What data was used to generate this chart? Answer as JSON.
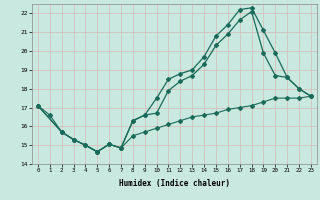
{
  "title": "",
  "xlabel": "Humidex (Indice chaleur)",
  "ylabel": "",
  "bg_color": "#c8e8e0",
  "line_color": "#1a6b5a",
  "grid_color": "#b8d8d0",
  "xlim": [
    -0.5,
    23.5
  ],
  "ylim": [
    14,
    22.5
  ],
  "yticks": [
    14,
    15,
    16,
    17,
    18,
    19,
    20,
    21,
    22
  ],
  "xticks": [
    0,
    1,
    2,
    3,
    4,
    5,
    6,
    7,
    8,
    9,
    10,
    11,
    12,
    13,
    14,
    15,
    16,
    17,
    18,
    19,
    20,
    21,
    22,
    23
  ],
  "line1_x": [
    0,
    1,
    2,
    3,
    4,
    5,
    6,
    7,
    8,
    9,
    10,
    11,
    12,
    13,
    14,
    15,
    16,
    17,
    18,
    19,
    20,
    21,
    22,
    23
  ],
  "line1_y": [
    17.1,
    16.6,
    15.7,
    15.3,
    15.0,
    14.65,
    15.05,
    14.85,
    15.5,
    15.7,
    15.9,
    16.1,
    16.3,
    16.5,
    16.6,
    16.7,
    16.9,
    17.0,
    17.1,
    17.3,
    17.5,
    17.5,
    17.5,
    17.6
  ],
  "line2_x": [
    0,
    2,
    3,
    4,
    5,
    6,
    7,
    8,
    9,
    10,
    11,
    12,
    13,
    14,
    15,
    16,
    17,
    18,
    19,
    20,
    21,
    22,
    23
  ],
  "line2_y": [
    17.1,
    15.7,
    15.3,
    15.0,
    14.65,
    15.05,
    14.85,
    16.3,
    16.6,
    17.5,
    18.5,
    18.8,
    19.0,
    19.7,
    20.8,
    21.4,
    22.2,
    22.3,
    21.1,
    19.9,
    18.6,
    18.0,
    17.6
  ],
  "line3_x": [
    0,
    2,
    3,
    4,
    5,
    6,
    7,
    8,
    9,
    10,
    11,
    12,
    13,
    14,
    15,
    16,
    17,
    18,
    19,
    20,
    21,
    22,
    23
  ],
  "line3_y": [
    17.1,
    15.7,
    15.3,
    15.0,
    14.65,
    15.05,
    14.85,
    16.3,
    16.6,
    16.7,
    17.9,
    18.4,
    18.7,
    19.3,
    20.3,
    20.9,
    21.65,
    22.1,
    19.9,
    18.7,
    18.6,
    18.0,
    17.6
  ]
}
